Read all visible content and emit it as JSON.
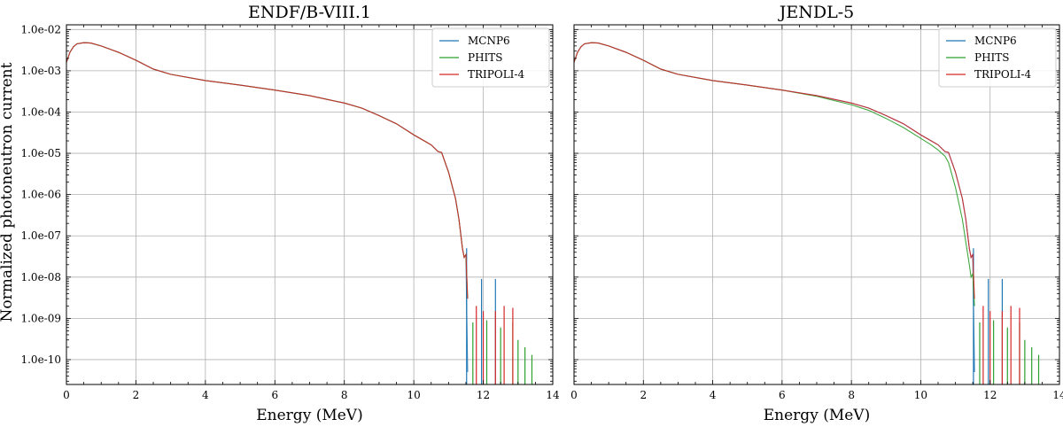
{
  "figure": {
    "ylabel": "Normalized photoneutron current",
    "legend_placement": "top-right"
  },
  "chart_data": [
    {
      "type": "line",
      "title": "ENDF/B-VIII.1",
      "xlabel": "Energy (MeV)",
      "ylabel": "Normalized photoneutron current",
      "xscale": "linear",
      "yscale": "log",
      "xlim": [
        0,
        14
      ],
      "ylim": [
        2.5e-11,
        0.013
      ],
      "grid": true,
      "xticks": [
        0,
        2,
        4,
        6,
        8,
        10,
        12,
        14
      ],
      "xtick_labels": [
        "0",
        "2",
        "4",
        "6",
        "8",
        "10",
        "12",
        "14"
      ],
      "yticks": [
        1e-10,
        1e-09,
        1e-08,
        1e-07,
        1e-06,
        1e-05,
        0.0001,
        0.001,
        0.01
      ],
      "ytick_labels": [
        "1.0e-10",
        "1.0e-09",
        "1.0e-08",
        "1.0e-07",
        "1.0e-06",
        "1.0e-05",
        "1.0e-04",
        "1.0e-03",
        "1.0e-02"
      ],
      "series": [
        {
          "name": "MCNP6",
          "color": "#1f77b4",
          "x": [
            0.0,
            0.1,
            0.2,
            0.3,
            0.5,
            0.7,
            1.0,
            1.5,
            2.0,
            2.5,
            3.0,
            4.0,
            5.0,
            6.0,
            7.0,
            8.0,
            8.5,
            9.0,
            9.5,
            10.0,
            10.3,
            10.5,
            10.7,
            10.8,
            11.0,
            11.2,
            11.3,
            11.4,
            11.45,
            11.5,
            11.55
          ],
          "y": [
            0.0016,
            0.0028,
            0.0038,
            0.0045,
            0.0048,
            0.0047,
            0.004,
            0.0028,
            0.0018,
            0.0011,
            0.00082,
            0.00058,
            0.00045,
            0.00034,
            0.00025,
            0.000165,
            0.000125,
            8.2e-05,
            5.2e-05,
            2.8e-05,
            2e-05,
            1.6e-05,
            1.1e-05,
            1.05e-05,
            3.5e-06,
            8e-07,
            2.5e-07,
            5e-08,
            3e-08,
            3.5e-08,
            5e-11
          ],
          "spikes": [
            [
              11.52,
              5e-08
            ],
            [
              11.95,
              9e-09
            ],
            [
              12.35,
              9e-09
            ]
          ]
        },
        {
          "name": "PHITS",
          "color": "#2ca02c",
          "x": [
            0.0,
            0.1,
            0.2,
            0.3,
            0.5,
            0.7,
            1.0,
            1.5,
            2.0,
            2.5,
            3.0,
            4.0,
            5.0,
            6.0,
            7.0,
            8.0,
            8.5,
            9.0,
            9.5,
            10.0,
            10.3,
            10.5,
            10.7,
            10.8,
            11.0,
            11.2,
            11.3,
            11.4,
            11.45,
            11.5,
            11.55
          ],
          "y": [
            0.0016,
            0.0028,
            0.0038,
            0.0045,
            0.0048,
            0.0047,
            0.004,
            0.0028,
            0.0018,
            0.0011,
            0.00082,
            0.00058,
            0.00045,
            0.00034,
            0.00025,
            0.000165,
            0.000125,
            8.2e-05,
            5.2e-05,
            2.8e-05,
            2e-05,
            1.6e-05,
            1.1e-05,
            1.05e-05,
            3.5e-06,
            8e-07,
            2.5e-07,
            5e-08,
            3e-08,
            3.5e-08,
            3e-09
          ],
          "spikes": [
            [
              11.7,
              8e-10
            ],
            [
              12.1,
              9e-10
            ],
            [
              12.5,
              6e-10
            ],
            [
              12.85,
              8e-10
            ],
            [
              13.0,
              3e-10
            ],
            [
              13.2,
              2e-10
            ],
            [
              13.4,
              1.3e-10
            ]
          ]
        },
        {
          "name": "TRIPOLI-4",
          "color": "#d62728",
          "x": [
            0.0,
            0.1,
            0.2,
            0.3,
            0.5,
            0.7,
            1.0,
            1.5,
            2.0,
            2.5,
            3.0,
            4.0,
            5.0,
            6.0,
            7.0,
            8.0,
            8.5,
            9.0,
            9.5,
            10.0,
            10.3,
            10.5,
            10.7,
            10.8,
            11.0,
            11.2,
            11.3,
            11.4,
            11.45,
            11.5,
            11.55
          ],
          "y": [
            0.0016,
            0.0028,
            0.0038,
            0.0045,
            0.0048,
            0.0047,
            0.004,
            0.0028,
            0.0018,
            0.0011,
            0.00082,
            0.00058,
            0.00045,
            0.00034,
            0.00025,
            0.000165,
            0.000125,
            8.2e-05,
            5.2e-05,
            2.8e-05,
            2e-05,
            1.6e-05,
            1.1e-05,
            1.05e-05,
            3.5e-06,
            8e-07,
            2.5e-07,
            5e-08,
            3e-08,
            3.5e-08,
            3e-09
          ],
          "spikes": [
            [
              11.8,
              2e-09
            ],
            [
              12.0,
              1.5e-09
            ],
            [
              12.35,
              1.5e-09
            ],
            [
              12.6,
              2e-09
            ],
            [
              12.85,
              1.8e-09
            ]
          ]
        }
      ]
    },
    {
      "type": "line",
      "title": "JENDL-5",
      "xlabel": "Energy (MeV)",
      "ylabel": "",
      "xscale": "linear",
      "yscale": "log",
      "xlim": [
        0,
        14
      ],
      "ylim": [
        2.5e-11,
        0.013
      ],
      "grid": true,
      "xticks": [
        0,
        2,
        4,
        6,
        8,
        10,
        12,
        14
      ],
      "xtick_labels": [
        "0",
        "2",
        "4",
        "6",
        "8",
        "10",
        "12",
        "14"
      ],
      "yticks": [
        1e-10,
        1e-09,
        1e-08,
        1e-07,
        1e-06,
        1e-05,
        0.0001,
        0.001,
        0.01
      ],
      "ytick_labels": [
        "1.0e-10",
        "1.0e-09",
        "1.0e-08",
        "1.0e-07",
        "1.0e-06",
        "1.0e-05",
        "1.0e-04",
        "1.0e-03",
        "1.0e-02"
      ],
      "series": [
        {
          "name": "MCNP6",
          "color": "#1f77b4",
          "x": [
            0.0,
            0.1,
            0.2,
            0.3,
            0.5,
            0.7,
            1.0,
            1.5,
            2.0,
            2.5,
            3.0,
            4.0,
            5.0,
            6.0,
            7.0,
            8.0,
            8.5,
            9.0,
            9.5,
            10.0,
            10.3,
            10.5,
            10.7,
            10.8,
            11.0,
            11.2,
            11.3,
            11.4,
            11.45,
            11.5,
            11.55
          ],
          "y": [
            0.0016,
            0.0028,
            0.0038,
            0.0045,
            0.0048,
            0.0047,
            0.004,
            0.0028,
            0.0018,
            0.0011,
            0.00082,
            0.00058,
            0.00045,
            0.00034,
            0.00025,
            0.000165,
            0.000125,
            8.2e-05,
            5.2e-05,
            2.8e-05,
            2e-05,
            1.6e-05,
            1.1e-05,
            1.05e-05,
            3.5e-06,
            8e-07,
            2.5e-07,
            5e-08,
            3e-08,
            3.5e-08,
            5e-11
          ],
          "spikes": [
            [
              11.52,
              5e-08
            ],
            [
              11.95,
              9e-09
            ],
            [
              12.35,
              9e-09
            ]
          ]
        },
        {
          "name": "PHITS",
          "color": "#2ca02c",
          "x": [
            0.0,
            0.1,
            0.2,
            0.3,
            0.5,
            0.7,
            1.0,
            1.5,
            2.0,
            2.5,
            3.0,
            4.0,
            5.0,
            6.0,
            7.0,
            8.0,
            8.5,
            9.0,
            9.5,
            10.0,
            10.3,
            10.5,
            10.7,
            10.8,
            11.0,
            11.2,
            11.3,
            11.4,
            11.45,
            11.5,
            11.55
          ],
          "y": [
            0.0016,
            0.0028,
            0.0038,
            0.0045,
            0.0048,
            0.0047,
            0.004,
            0.0028,
            0.0018,
            0.0011,
            0.00082,
            0.00058,
            0.00045,
            0.00034,
            0.00024,
            0.00015,
            0.00011,
            7e-05,
            4.2e-05,
            2.3e-05,
            1.6e-05,
            1.2e-05,
            8.5e-06,
            6e-06,
            1.5e-06,
            2.5e-07,
            7e-08,
            2e-08,
            1e-08,
            1.2e-08,
            2e-09
          ],
          "spikes": [
            [
              11.7,
              8e-10
            ],
            [
              12.1,
              9e-10
            ],
            [
              12.5,
              6e-10
            ],
            [
              12.85,
              8e-10
            ],
            [
              13.0,
              3e-10
            ],
            [
              13.2,
              2e-10
            ],
            [
              13.4,
              1.3e-10
            ]
          ]
        },
        {
          "name": "TRIPOLI-4",
          "color": "#d62728",
          "x": [
            0.0,
            0.1,
            0.2,
            0.3,
            0.5,
            0.7,
            1.0,
            1.5,
            2.0,
            2.5,
            3.0,
            4.0,
            5.0,
            6.0,
            7.0,
            8.0,
            8.5,
            9.0,
            9.5,
            10.0,
            10.3,
            10.5,
            10.7,
            10.8,
            11.0,
            11.2,
            11.3,
            11.4,
            11.45,
            11.5,
            11.55
          ],
          "y": [
            0.0016,
            0.0028,
            0.0038,
            0.0045,
            0.0048,
            0.0047,
            0.004,
            0.0028,
            0.0018,
            0.0011,
            0.00082,
            0.00058,
            0.00045,
            0.00034,
            0.00025,
            0.000165,
            0.000125,
            8.2e-05,
            5.2e-05,
            2.8e-05,
            2e-05,
            1.6e-05,
            1.1e-05,
            1.05e-05,
            3.5e-06,
            8e-07,
            2.5e-07,
            5e-08,
            3e-08,
            3.5e-08,
            3e-09
          ],
          "spikes": [
            [
              11.8,
              2e-09
            ],
            [
              12.0,
              1.5e-09
            ],
            [
              12.35,
              1.5e-09
            ],
            [
              12.6,
              2e-09
            ],
            [
              12.85,
              1.8e-09
            ]
          ]
        }
      ]
    }
  ]
}
